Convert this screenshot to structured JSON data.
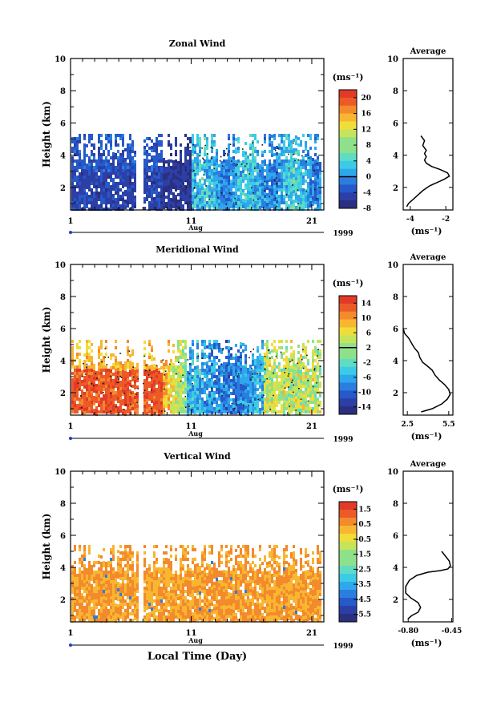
{
  "footer": {
    "xlabel": "Local Time (Day)"
  },
  "chart_data": [
    {
      "type": "heatmap",
      "title": "Zonal Wind",
      "ylabel": "Height (km)",
      "ylim": [
        0.6,
        10
      ],
      "yticks": [
        "2",
        "4",
        "6",
        "8",
        "10"
      ],
      "xlim": [
        1,
        22
      ],
      "xticks": [
        "1",
        "11",
        "21"
      ],
      "month_label": "Aug",
      "year_label": "1999",
      "colorbar": {
        "unit": "(ms⁻¹)",
        "range": [
          -8,
          22
        ],
        "labels": [
          "20",
          "16",
          "12",
          "8",
          "4",
          "0",
          "-4",
          "-8"
        ],
        "contour_level": 0
      },
      "profile": {
        "title": "Average",
        "xlabel": "(ms⁻¹)",
        "xlim": [
          -4.4,
          -1.6
        ],
        "xticks": [
          "-4",
          "-2"
        ],
        "points": [
          [
            -4.2,
            0.8
          ],
          [
            -4.1,
            1.0
          ],
          [
            -3.9,
            1.2
          ],
          [
            -3.6,
            1.5
          ],
          [
            -3.3,
            1.8
          ],
          [
            -2.9,
            2.1
          ],
          [
            -2.5,
            2.3
          ],
          [
            -2.1,
            2.5
          ],
          [
            -1.8,
            2.7
          ],
          [
            -1.9,
            2.9
          ],
          [
            -2.3,
            3.1
          ],
          [
            -2.8,
            3.3
          ],
          [
            -3.1,
            3.5
          ],
          [
            -3.2,
            3.7
          ],
          [
            -3.1,
            3.9
          ],
          [
            -3.2,
            4.1
          ],
          [
            -3.1,
            4.3
          ],
          [
            -3.3,
            4.6
          ],
          [
            -3.2,
            4.9
          ],
          [
            -3.4,
            5.2
          ]
        ]
      }
    },
    {
      "type": "heatmap",
      "title": "Meridional Wind",
      "ylabel": "Height (km)",
      "ylim": [
        0.6,
        10
      ],
      "yticks": [
        "2",
        "4",
        "6",
        "8",
        "10"
      ],
      "xlim": [
        1,
        22
      ],
      "xticks": [
        "1",
        "11",
        "21"
      ],
      "month_label": "Aug",
      "year_label": "1999",
      "colorbar": {
        "unit": "(ms⁻¹)",
        "range": [
          -16,
          16
        ],
        "labels": [
          "14",
          "10",
          "6",
          "2",
          "-2",
          "-6",
          "-10",
          "-14"
        ],
        "contour_level": 2
      },
      "profile": {
        "title": "Average",
        "xlabel": "(ms⁻¹)",
        "xlim": [
          2.2,
          5.8
        ],
        "xticks": [
          "2.5",
          "5.5"
        ],
        "points": [
          [
            3.5,
            0.8
          ],
          [
            4.3,
            1.0
          ],
          [
            5.0,
            1.3
          ],
          [
            5.4,
            1.6
          ],
          [
            5.6,
            1.9
          ],
          [
            5.5,
            2.2
          ],
          [
            5.2,
            2.5
          ],
          [
            4.8,
            2.8
          ],
          [
            4.5,
            3.1
          ],
          [
            4.3,
            3.4
          ],
          [
            3.9,
            3.7
          ],
          [
            3.6,
            3.9
          ],
          [
            3.4,
            4.2
          ],
          [
            3.3,
            4.5
          ],
          [
            3.0,
            4.8
          ],
          [
            2.8,
            5.1
          ],
          [
            2.6,
            5.4
          ],
          [
            2.3,
            5.7
          ],
          [
            2.2,
            6.0
          ]
        ]
      }
    },
    {
      "type": "heatmap",
      "title": "Vertical Wind",
      "ylabel": "Height (km)",
      "ylim": [
        0.6,
        10
      ],
      "yticks": [
        "2",
        "4",
        "6",
        "8",
        "10"
      ],
      "xlim": [
        1,
        22
      ],
      "xticks": [
        "1",
        "11",
        "21"
      ],
      "month_label": "Aug",
      "year_label": "1999",
      "colorbar": {
        "unit": "(ms⁻¹)",
        "range": [
          -6,
          2
        ],
        "labels": [
          "1.5",
          "0.5",
          "-0.5",
          "-1.5",
          "-2.5",
          "-3.5",
          "-4.5",
          "-5.5"
        ],
        "contour_level": null
      },
      "profile": {
        "title": "Average",
        "xlabel": "(ms⁻¹)",
        "xlim": [
          -0.84,
          -0.44
        ],
        "xticks": [
          "-0.80",
          "-0.45"
        ],
        "points": [
          [
            -0.8,
            0.8
          ],
          [
            -0.77,
            1.0
          ],
          [
            -0.72,
            1.2
          ],
          [
            -0.7,
            1.5
          ],
          [
            -0.72,
            1.8
          ],
          [
            -0.78,
            2.1
          ],
          [
            -0.82,
            2.4
          ],
          [
            -0.82,
            2.8
          ],
          [
            -0.79,
            3.2
          ],
          [
            -0.73,
            3.5
          ],
          [
            -0.64,
            3.7
          ],
          [
            -0.54,
            3.8
          ],
          [
            -0.48,
            3.9
          ],
          [
            -0.46,
            4.1
          ],
          [
            -0.47,
            4.4
          ],
          [
            -0.5,
            4.7
          ],
          [
            -0.53,
            5.0
          ]
        ]
      }
    }
  ]
}
